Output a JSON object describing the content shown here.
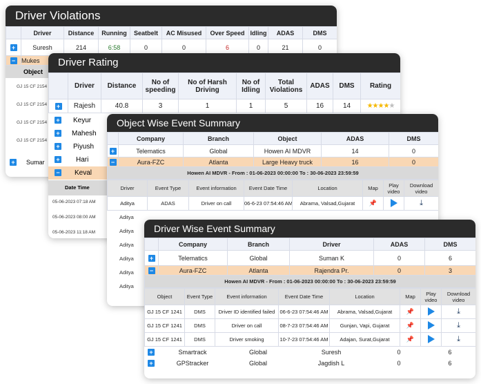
{
  "violations": {
    "title": "Driver Violations",
    "headers": [
      "Driver",
      "Distance",
      "Running",
      "Seatbelt",
      "AC Misused",
      "Over Speed",
      "Idling",
      "ADAS",
      "DMS"
    ],
    "rows": [
      {
        "driver": "Suresh",
        "distance": "214",
        "running": "6:58",
        "seatbelt": "0",
        "ac": "0",
        "overspeed": "6",
        "idling": "0",
        "adas": "21",
        "dms": "0"
      }
    ],
    "selected_driver": "Mukes",
    "sub_header": "Object",
    "sub_rows": [
      "GJ 15 CF 2154",
      "GJ 15 CF 2154",
      "GJ 15 CF 2154",
      "GJ 15 CF 2154"
    ],
    "last_driver": "Sumar"
  },
  "rating": {
    "title": "Driver Rating",
    "headers": [
      "Driver",
      "Distance",
      "No of speeding",
      "No of Harsh Driving",
      "No of Idling",
      "Total Violations",
      "ADAS",
      "DMS",
      "Rating"
    ],
    "row": {
      "driver": "Rajesh",
      "distance": "40.8",
      "speeding": "3",
      "harsh": "1",
      "idling": "1",
      "total": "5",
      "adas": "16",
      "dms": "14",
      "rating": 4
    },
    "drivers": [
      "Keyur",
      "Mahesh",
      "Piyush",
      "Hari",
      "Keval"
    ],
    "sub_header": "Date Time",
    "dates": [
      "05-06-2023 07:18 AM",
      "05-06-2023 08:00 AM",
      "05-06-2023 11:18 AM"
    ]
  },
  "object_summary": {
    "title": "Object Wise Event Summary",
    "headers": [
      "Company",
      "Branch",
      "Object",
      "ADAS",
      "DMS"
    ],
    "rows": [
      {
        "company": "Telematics",
        "branch": "Global",
        "object": "Howen AI MDVR",
        "adas": "14",
        "dms": "0"
      },
      {
        "company": "Aura-FZC",
        "branch": "Atlanta",
        "object": "Large Heavy truck",
        "adas": "16",
        "dms": "0"
      }
    ],
    "range": "Howen AI MDVR - From : 01-06-2023 00:00:00 To : 30-06-2023 23:59:59",
    "event_headers": [
      "Driver",
      "Event Type",
      "Event information",
      "Event Date Time",
      "Location",
      "Map",
      "Play video",
      "Download video"
    ],
    "event_row": {
      "driver": "Aditya",
      "type": "ADAS",
      "info": "Driver on call",
      "time": "06-6-23  07:54:46 AM",
      "location": "Abrama, Valsad,Gujarat"
    },
    "more_drivers": [
      "Aditya",
      "Aditya",
      "Aditya",
      "Aditya",
      "Aditya",
      "Aditya"
    ]
  },
  "driver_summary": {
    "title": "Driver Wise Event Summary",
    "headers": [
      "Company",
      "Branch",
      "Driver",
      "ADAS",
      "DMS"
    ],
    "rows": [
      {
        "company": "Telematics",
        "branch": "Global",
        "driver": "Suman K",
        "adas": "0",
        "dms": "6"
      },
      {
        "company": "Aura-FZC",
        "branch": "Atlanta",
        "driver": "Rajendra Pr.",
        "adas": "0",
        "dms": "3"
      }
    ],
    "range": "Howen AI MDVR - From : 01-06-2023 00:00:00 To : 30-06-2023 23:59:59",
    "event_headers": [
      "Object",
      "Event Type",
      "Event information",
      "Event Date Time",
      "Location",
      "Map",
      "Play video",
      "Download video"
    ],
    "events": [
      {
        "object": "GJ 15 CF 1241",
        "type": "DMS",
        "info": "Driver ID identified failed",
        "time": "06-6-23  07:54:46 AM",
        "location": "Abrama, Valsad,Gujarat"
      },
      {
        "object": "GJ 15 CF 1241",
        "type": "DMS",
        "info": "Driver on call",
        "time": "08-7-23  07:54:46 AM",
        "location": "Gunjan, Vapi, Gujarat"
      },
      {
        "object": "GJ 15 CF 1241",
        "type": "DMS",
        "info": "Driver smoking",
        "time": "10-7-23  07:54:46 AM",
        "location": "Adajan, Surat,Gujarat"
      }
    ],
    "more_rows": [
      {
        "company": "Smartrack",
        "branch": "Global",
        "driver": "Suresh",
        "adas": "0",
        "dms": "6"
      },
      {
        "company": "GPStracker",
        "branch": "Global",
        "driver": "Jagdish  L",
        "adas": "0",
        "dms": "6"
      }
    ]
  },
  "colors": {
    "accent": "#1e88e5",
    "selected_row": "#f9d7b4",
    "title_bar": "#2b2b2b"
  }
}
